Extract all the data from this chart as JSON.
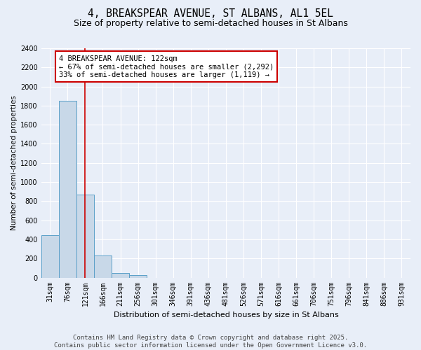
{
  "title1": "4, BREAKSPEAR AVENUE, ST ALBANS, AL1 5EL",
  "title2": "Size of property relative to semi-detached houses in St Albans",
  "xlabel": "Distribution of semi-detached houses by size in St Albans",
  "ylabel": "Number of semi-detached properties",
  "bar_labels": [
    "31sqm",
    "76sqm",
    "121sqm",
    "166sqm",
    "211sqm",
    "256sqm",
    "301sqm",
    "346sqm",
    "391sqm",
    "436sqm",
    "481sqm",
    "526sqm",
    "571sqm",
    "616sqm",
    "661sqm",
    "706sqm",
    "751sqm",
    "796sqm",
    "841sqm",
    "886sqm",
    "931sqm"
  ],
  "bar_values": [
    447,
    1848,
    869,
    232,
    50,
    24,
    0,
    0,
    0,
    0,
    0,
    0,
    0,
    0,
    0,
    0,
    0,
    0,
    0,
    0,
    0
  ],
  "bar_color": "#c8d8e8",
  "bar_edge_color": "#5a9fc8",
  "property_line_x": 2,
  "annotation_text": "4 BREAKSPEAR AVENUE: 122sqm\n← 67% of semi-detached houses are smaller (2,292)\n33% of semi-detached houses are larger (1,119) →",
  "annotation_box_color": "#ffffff",
  "annotation_box_edge": "#cc0000",
  "vline_color": "#cc0000",
  "ylim": [
    0,
    2400
  ],
  "yticks": [
    0,
    200,
    400,
    600,
    800,
    1000,
    1200,
    1400,
    1600,
    1800,
    2000,
    2200,
    2400
  ],
  "bg_color": "#e8eef8",
  "plot_bg_color": "#e8eef8",
  "grid_color": "#ffffff",
  "footer_text": "Contains HM Land Registry data © Crown copyright and database right 2025.\nContains public sector information licensed under the Open Government Licence v3.0.",
  "title1_fontsize": 10.5,
  "title2_fontsize": 9,
  "xlabel_fontsize": 8,
  "ylabel_fontsize": 7.5,
  "tick_fontsize": 7,
  "annotation_fontsize": 7.5,
  "footer_fontsize": 6.5
}
